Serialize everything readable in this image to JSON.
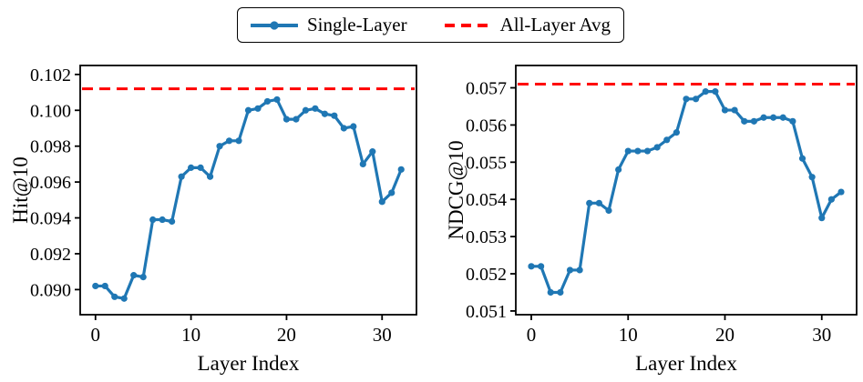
{
  "figure": {
    "background": "#ffffff",
    "text_color": "#000000"
  },
  "legend": {
    "items": [
      {
        "label": "Single-Layer",
        "style": "solid-line-with-marker",
        "color": "#1f77b4"
      },
      {
        "label": "All-Layer Avg",
        "style": "dashed-line",
        "color": "#ff0000"
      }
    ]
  },
  "chart_data": [
    {
      "type": "line",
      "title": "",
      "xlabel": "Layer Index",
      "ylabel": "Hit@10",
      "x": [
        0,
        1,
        2,
        3,
        4,
        5,
        6,
        7,
        8,
        9,
        10,
        11,
        12,
        13,
        14,
        15,
        16,
        17,
        18,
        19,
        20,
        21,
        22,
        23,
        24,
        25,
        26,
        27,
        28,
        29,
        30,
        31,
        32
      ],
      "series": [
        {
          "name": "Single-Layer",
          "color": "#1f77b4",
          "values": [
            0.0902,
            0.0902,
            0.0896,
            0.0895,
            0.0908,
            0.0907,
            0.0939,
            0.0939,
            0.0938,
            0.0963,
            0.0968,
            0.0968,
            0.0963,
            0.098,
            0.0983,
            0.0983,
            0.1,
            0.1001,
            0.1005,
            0.1006,
            0.0995,
            0.0995,
            0.1,
            0.1001,
            0.0998,
            0.0997,
            0.099,
            0.0991,
            0.097,
            0.0977,
            0.0949,
            0.0954,
            0.0967
          ]
        }
      ],
      "hline": {
        "name": "All-Layer Avg",
        "value": 0.1012,
        "color": "#ff0000"
      },
      "xlim": [
        -1.6,
        33.6
      ],
      "ylim": [
        0.0886,
        0.1025
      ],
      "xticks": [
        0,
        10,
        20,
        30
      ],
      "yticks": [
        0.09,
        0.092,
        0.094,
        0.096,
        0.098,
        0.1,
        0.102
      ],
      "ytick_decimals": 3,
      "grid": false,
      "legend_position": "shared-top-center"
    },
    {
      "type": "line",
      "title": "",
      "xlabel": "Layer Index",
      "ylabel": "NDCG@10",
      "x": [
        0,
        1,
        2,
        3,
        4,
        5,
        6,
        7,
        8,
        9,
        10,
        11,
        12,
        13,
        14,
        15,
        16,
        17,
        18,
        19,
        20,
        21,
        22,
        23,
        24,
        25,
        26,
        27,
        28,
        29,
        30,
        31,
        32
      ],
      "series": [
        {
          "name": "Single-Layer",
          "color": "#1f77b4",
          "values": [
            0.0522,
            0.0522,
            0.0515,
            0.0515,
            0.0521,
            0.0521,
            0.0539,
            0.0539,
            0.0537,
            0.0548,
            0.0553,
            0.0553,
            0.0553,
            0.0554,
            0.0556,
            0.0558,
            0.0567,
            0.0567,
            0.0569,
            0.0569,
            0.0564,
            0.0564,
            0.0561,
            0.0561,
            0.0562,
            0.0562,
            0.0562,
            0.0561,
            0.0551,
            0.0546,
            0.0535,
            0.054,
            0.0542
          ]
        }
      ],
      "hline": {
        "name": "All-Layer Avg",
        "value": 0.0571,
        "color": "#ff0000"
      },
      "xlim": [
        -1.6,
        33.6
      ],
      "ylim": [
        0.0509,
        0.0576
      ],
      "xticks": [
        0,
        10,
        20,
        30
      ],
      "yticks": [
        0.051,
        0.052,
        0.053,
        0.054,
        0.055,
        0.056,
        0.057
      ],
      "ytick_decimals": 3,
      "grid": false,
      "legend_position": "shared-top-center"
    }
  ]
}
